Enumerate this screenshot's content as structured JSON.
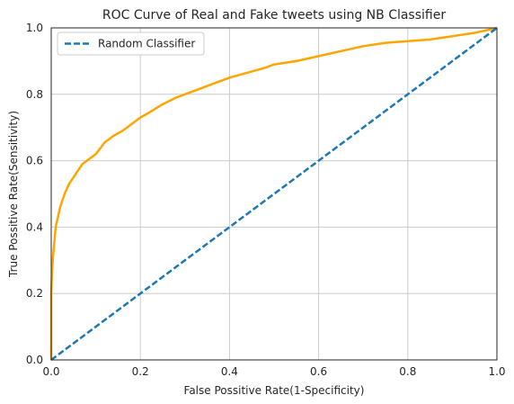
{
  "chart_data": {
    "type": "line",
    "title": "ROC Curve of Real and Fake tweets using NB Classifier",
    "xlabel": "False Possitive Rate(1-Specificity)",
    "ylabel": "True Possitive Rate(Sensitivity)",
    "xlim": [
      0,
      1
    ],
    "ylim": [
      0,
      1
    ],
    "xticks": [
      "0.0",
      "0.2",
      "0.4",
      "0.6",
      "0.8",
      "1.0"
    ],
    "yticks": [
      "0.0",
      "0.2",
      "0.4",
      "0.6",
      "0.8",
      "1.0"
    ],
    "grid": true,
    "legend_position": "top-left",
    "series": [
      {
        "color": "#FFA500",
        "style": "solid",
        "x": [
          0,
          0.0,
          0.002,
          0.004,
          0.006,
          0.008,
          0.01,
          0.015,
          0.02,
          0.025,
          0.03,
          0.04,
          0.05,
          0.06,
          0.07,
          0.08,
          0.09,
          0.1,
          0.12,
          0.14,
          0.16,
          0.18,
          0.2,
          0.22,
          0.25,
          0.28,
          0.3,
          0.33,
          0.36,
          0.4,
          0.44,
          0.48,
          0.5,
          0.55,
          0.6,
          0.65,
          0.7,
          0.75,
          0.8,
          0.85,
          0.9,
          0.95,
          1.0
        ],
        "y": [
          0,
          0.2,
          0.27,
          0.31,
          0.34,
          0.37,
          0.4,
          0.43,
          0.46,
          0.48,
          0.5,
          0.53,
          0.55,
          0.57,
          0.59,
          0.6,
          0.61,
          0.62,
          0.655,
          0.675,
          0.69,
          0.71,
          0.73,
          0.745,
          0.77,
          0.79,
          0.8,
          0.815,
          0.83,
          0.85,
          0.865,
          0.88,
          0.89,
          0.9,
          0.915,
          0.93,
          0.945,
          0.955,
          0.96,
          0.965,
          0.975,
          0.985,
          1.0
        ]
      },
      {
        "name": "Random Classifier",
        "color": "#1F77B4",
        "style": "dashed",
        "x": [
          0,
          1
        ],
        "y": [
          0,
          1
        ]
      }
    ]
  }
}
